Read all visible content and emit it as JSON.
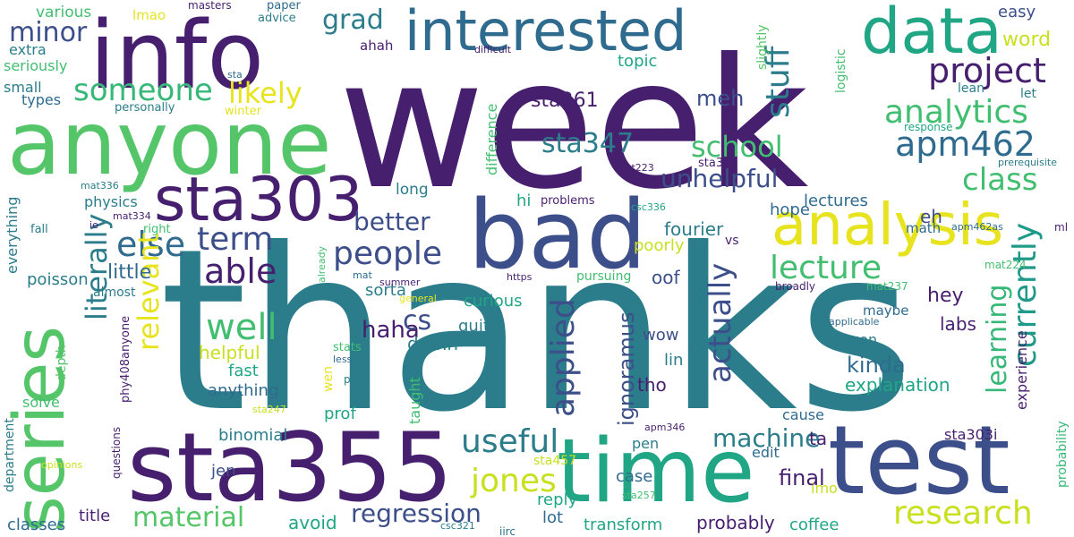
{
  "words": [
    {
      "text": "week",
      "color": "#471f6f"
    },
    {
      "text": "thanks",
      "color": "#2b7d8b"
    },
    {
      "text": "info",
      "color": "#471f6f"
    },
    {
      "text": "anyone",
      "color": "#54c568"
    },
    {
      "text": "series",
      "color": "#54c568"
    },
    {
      "text": "sta355",
      "color": "#471f6f"
    },
    {
      "text": "bad",
      "color": "#3c4f8a"
    },
    {
      "text": "test",
      "color": "#3c4f8a"
    },
    {
      "text": "time",
      "color": "#21a685"
    },
    {
      "text": "interested",
      "color": "#2f6b8e"
    },
    {
      "text": "data",
      "color": "#21a685"
    },
    {
      "text": "analysis",
      "color": "#e7e41f"
    },
    {
      "text": "sta303",
      "color": "#471f6f"
    },
    {
      "text": "research",
      "color": "#c8e020"
    },
    {
      "text": "project",
      "color": "#471f6f"
    },
    {
      "text": "analytics",
      "color": "#42be71"
    },
    {
      "text": "apm462",
      "color": "#2f6b8e"
    },
    {
      "text": "class",
      "color": "#42be71"
    },
    {
      "text": "currently",
      "color": "#1f9a8a"
    },
    {
      "text": "lecture",
      "color": "#42be71"
    },
    {
      "text": "learning",
      "color": "#37b878"
    },
    {
      "text": "actually",
      "color": "#3c4f8a"
    },
    {
      "text": "applied",
      "color": "#3c4f8a"
    },
    {
      "text": "useful",
      "color": "#2b7d8b"
    },
    {
      "text": "jones",
      "color": "#c8e020"
    },
    {
      "text": "regression",
      "color": "#3c4f8a"
    },
    {
      "text": "material",
      "color": "#54c568"
    },
    {
      "text": "people",
      "color": "#3c4f8a"
    },
    {
      "text": "able",
      "color": "#471f6f"
    },
    {
      "text": "term",
      "color": "#3c4f8a"
    },
    {
      "text": "else",
      "color": "#2f6b8e"
    },
    {
      "text": "well",
      "color": "#42be71"
    },
    {
      "text": "someone",
      "color": "#37b878"
    },
    {
      "text": "likely",
      "color": "#e7e41f"
    },
    {
      "text": "grad",
      "color": "#2b7d8b"
    },
    {
      "text": "minor",
      "color": "#3c4f8a"
    },
    {
      "text": "stuff",
      "color": "#2b7d8b"
    },
    {
      "text": "school",
      "color": "#42be71"
    },
    {
      "text": "sta347",
      "color": "#2b7d8b"
    },
    {
      "text": "meh",
      "color": "#3c4f8a"
    },
    {
      "text": "unhelpful",
      "color": "#3c4f8a"
    },
    {
      "text": "better",
      "color": "#3c4f8a"
    },
    {
      "text": "literally",
      "color": "#2b7d8b"
    },
    {
      "text": "relevant",
      "color": "#e7e41f"
    },
    {
      "text": "machine",
      "color": "#2b7d8b"
    },
    {
      "text": "haha",
      "color": "#471f6f"
    },
    {
      "text": "cs",
      "color": "#3c4f8a"
    },
    {
      "text": "kinda",
      "color": "#2f6b8e"
    },
    {
      "text": "word",
      "color": "#c8e020"
    },
    {
      "text": "easy",
      "color": "#3c4f8a"
    },
    {
      "text": "sta261",
      "color": "#471f6f"
    },
    {
      "text": "topic",
      "color": "#21a685"
    },
    {
      "text": "little",
      "color": "#2f6b8e"
    },
    {
      "text": "ignoramus",
      "color": "#3c4f8a"
    },
    {
      "text": "final",
      "color": "#471f6f"
    },
    {
      "text": "explanation",
      "color": "#21a685"
    },
    {
      "text": "hey",
      "color": "#471f6f"
    },
    {
      "text": "labs",
      "color": "#471f6f"
    },
    {
      "text": "hope",
      "color": "#2f6b8e"
    },
    {
      "text": "lectures",
      "color": "#2f6b8e"
    },
    {
      "text": "eh",
      "color": "#3c4f8a"
    },
    {
      "text": "fourier",
      "color": "#2b7d8b"
    },
    {
      "text": "poorly",
      "color": "#c8e020"
    },
    {
      "text": "oof",
      "color": "#3c4f8a"
    },
    {
      "text": "wow",
      "color": "#3c4f8a"
    },
    {
      "text": "lin",
      "color": "#2b7d8b"
    },
    {
      "text": "tho",
      "color": "#471f6f"
    },
    {
      "text": "curious",
      "color": "#21a685"
    },
    {
      "text": "quite",
      "color": "#2b7d8b"
    },
    {
      "text": "damn",
      "color": "#2b7d8b"
    },
    {
      "text": "helpful",
      "color": "#c8e020"
    },
    {
      "text": "fast",
      "color": "#21a685"
    },
    {
      "text": "anything",
      "color": "#2f6b8e"
    },
    {
      "text": "prof",
      "color": "#21a685"
    },
    {
      "text": "binomial",
      "color": "#2b7d8b"
    },
    {
      "text": "jen",
      "color": "#3c4f8a"
    },
    {
      "text": "title",
      "color": "#471f6f"
    },
    {
      "text": "classes",
      "color": "#2f6b8e"
    },
    {
      "text": "avoid",
      "color": "#21a685"
    },
    {
      "text": "probably",
      "color": "#471f6f"
    },
    {
      "text": "transform",
      "color": "#21a685"
    },
    {
      "text": "coffee",
      "color": "#21a685"
    },
    {
      "text": "lot",
      "color": "#2f6b8e"
    },
    {
      "text": "reply",
      "color": "#21a685"
    },
    {
      "text": "case",
      "color": "#2f6b8e"
    },
    {
      "text": "pen",
      "color": "#2b7d8b"
    },
    {
      "text": "ta",
      "color": "#471f6f"
    },
    {
      "text": "edit",
      "color": "#2f6b8e"
    },
    {
      "text": "cause",
      "color": "#2f6b8e"
    },
    {
      "text": "imo",
      "color": "#c8e020"
    },
    {
      "text": "sta303i",
      "color": "#471f6f"
    },
    {
      "text": "experience",
      "color": "#471f6f"
    },
    {
      "text": "probability",
      "color": "#37b878"
    },
    {
      "text": "math",
      "color": "#2f6b8e"
    },
    {
      "text": "maybe",
      "color": "#2f6b8e"
    },
    {
      "text": "gon",
      "color": "#2b7d8b"
    },
    {
      "text": "applicable",
      "color": "#2f6b8e"
    },
    {
      "text": "broadly",
      "color": "#471f6f"
    },
    {
      "text": "mat237",
      "color": "#42be71"
    },
    {
      "text": "mat224",
      "color": "#42be71"
    },
    {
      "text": "apm462as",
      "color": "#2f6b8e"
    },
    {
      "text": "ml",
      "color": "#471f6f"
    },
    {
      "text": "prerequisite",
      "color": "#2b7d8b"
    },
    {
      "text": "response",
      "color": "#21a685"
    },
    {
      "text": "lean",
      "color": "#2b7d8b"
    },
    {
      "text": "let",
      "color": "#2b7d8b"
    },
    {
      "text": "logistic",
      "color": "#42be71"
    },
    {
      "text": "slightly",
      "color": "#54c568"
    },
    {
      "text": "sta302",
      "color": "#471f6f"
    },
    {
      "text": "mat223",
      "color": "#471f6f"
    },
    {
      "text": "csc336",
      "color": "#21a685"
    },
    {
      "text": "vs",
      "color": "#471f6f"
    },
    {
      "text": "difference",
      "color": "#42be71"
    },
    {
      "text": "long",
      "color": "#2b7d8b"
    },
    {
      "text": "hi",
      "color": "#21a685"
    },
    {
      "text": "problems",
      "color": "#471f6f"
    },
    {
      "text": "pursuing",
      "color": "#42be71"
    },
    {
      "text": "https",
      "color": "#471f6f"
    },
    {
      "text": "sorta",
      "color": "#2b7d8b"
    },
    {
      "text": "physics",
      "color": "#2b7d8b"
    },
    {
      "text": "mat336",
      "color": "#2b7d8b"
    },
    {
      "text": "mat334",
      "color": "#471f6f"
    },
    {
      "text": "ie",
      "color": "#471f6f"
    },
    {
      "text": "right",
      "color": "#42be71"
    },
    {
      "text": "fall",
      "color": "#2b7d8b"
    },
    {
      "text": "everything",
      "color": "#2b7d8b"
    },
    {
      "text": "poisson",
      "color": "#2b7d8b"
    },
    {
      "text": "almost",
      "color": "#2b7d8b"
    },
    {
      "text": "phy408anyone",
      "color": "#471f6f"
    },
    {
      "text": "depth",
      "color": "#54c568"
    },
    {
      "text": "solve",
      "color": "#42be71"
    },
    {
      "text": "department",
      "color": "#2b7d8b"
    },
    {
      "text": "questions",
      "color": "#471f6f"
    },
    {
      "text": "opinions",
      "color": "#c8e020"
    },
    {
      "text": "csc321",
      "color": "#2b7d8b"
    },
    {
      "text": "iirc",
      "color": "#2f6b8e"
    },
    {
      "text": "sta257",
      "color": "#42be71"
    },
    {
      "text": "sta457",
      "color": "#c8e020"
    },
    {
      "text": "apm346",
      "color": "#471f6f"
    },
    {
      "text": "taught",
      "color": "#42be71"
    },
    {
      "text": "prior",
      "color": "#2b7d8b"
    },
    {
      "text": "less",
      "color": "#2f6b8e"
    },
    {
      "text": "wen",
      "color": "#e7e41f"
    },
    {
      "text": "stats",
      "color": "#42be71"
    },
    {
      "text": "already",
      "color": "#42be71"
    },
    {
      "text": "mat",
      "color": "#2f6b8e"
    },
    {
      "text": "summer",
      "color": "#471f6f"
    },
    {
      "text": "general",
      "color": "#e7e41f"
    },
    {
      "text": "sta247",
      "color": "#c8e020"
    },
    {
      "text": "various",
      "color": "#42be71"
    },
    {
      "text": "extra",
      "color": "#2b7d8b"
    },
    {
      "text": "seriously",
      "color": "#42be71"
    },
    {
      "text": "small",
      "color": "#2b7d8b"
    },
    {
      "text": "types",
      "color": "#2f6b8e"
    },
    {
      "text": "lmao",
      "color": "#e7e41f"
    },
    {
      "text": "masters",
      "color": "#471f6f"
    },
    {
      "text": "paper",
      "color": "#2f6b8e"
    },
    {
      "text": "advice",
      "color": "#2b7d8b"
    },
    {
      "text": "difficult",
      "color": "#471f6f"
    },
    {
      "text": "ahah",
      "color": "#471f6f"
    },
    {
      "text": "sta",
      "color": "#2f6b8e"
    },
    {
      "text": "personally",
      "color": "#2b7d8b"
    },
    {
      "text": "winter",
      "color": "#e7e41f"
    }
  ]
}
